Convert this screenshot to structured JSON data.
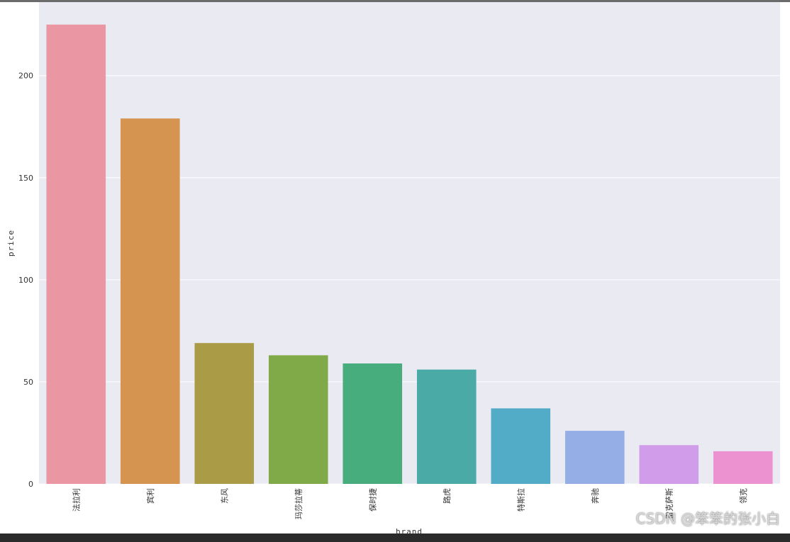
{
  "chart_data": {
    "type": "bar",
    "categories": [
      "法拉利",
      "宾利",
      "东风",
      "玛莎拉蒂",
      "保时捷",
      "路虎",
      "特斯拉",
      "奔驰",
      "雷克萨斯",
      "领克"
    ],
    "values": [
      225,
      179,
      69,
      63,
      59,
      56,
      37,
      26,
      19,
      16
    ],
    "colors": [
      "#ea96a3",
      "#d59450",
      "#aa9c47",
      "#80a947",
      "#48ad7d",
      "#4aaba6",
      "#52acc8",
      "#96aee6",
      "#d19cea",
      "#ed92d0"
    ],
    "xlabel": "brand",
    "ylabel": "price",
    "yticks": [
      0,
      50,
      100,
      150,
      200
    ],
    "ylim": [
      0,
      236
    ],
    "grid": true,
    "background": "#eaeaf2"
  },
  "watermark": "CSDN @笨笨的张小白"
}
